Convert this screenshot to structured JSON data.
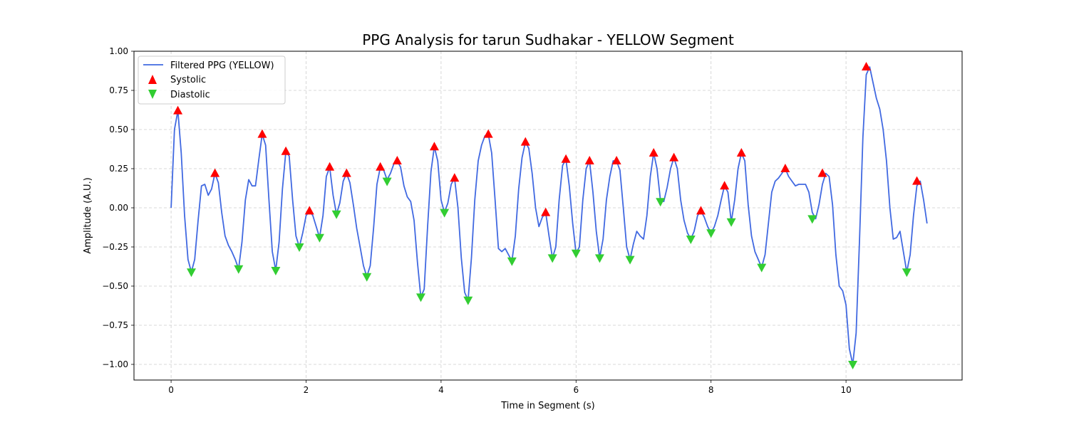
{
  "chart_data": {
    "type": "line",
    "title": "PPG Analysis for tarun Sudhakar - YELLOW Segment",
    "xlabel": "Time in Segment (s)",
    "ylabel": "Amplitude (A.U.)",
    "xlim": [
      -0.55,
      11.72
    ],
    "ylim": [
      -1.1,
      1.0
    ],
    "xticks": [
      0,
      2,
      4,
      6,
      8,
      10
    ],
    "yticks": [
      -1.0,
      -0.75,
      -0.5,
      -0.25,
      0.0,
      0.25,
      0.5,
      0.75,
      1.0
    ],
    "xtick_labels": [
      "0",
      "2",
      "4",
      "6",
      "8",
      "10"
    ],
    "ytick_labels": [
      "−1.00",
      "−0.75",
      "−0.50",
      "−0.25",
      "0.00",
      "0.25",
      "0.50",
      "0.75",
      "1.00"
    ],
    "grid": true,
    "legend_position": "upper-left",
    "colors": {
      "line": "#4169e1",
      "systolic": "#ff0000",
      "diastolic": "#32cd32"
    },
    "series": [
      {
        "name": "Filtered PPG (YELLOW)",
        "kind": "line",
        "points": [
          [
            0.0,
            0.0
          ],
          [
            0.05,
            0.5
          ],
          [
            0.1,
            0.62
          ],
          [
            0.15,
            0.35
          ],
          [
            0.2,
            -0.05
          ],
          [
            0.25,
            -0.33
          ],
          [
            0.3,
            -0.41
          ],
          [
            0.35,
            -0.33
          ],
          [
            0.4,
            -0.08
          ],
          [
            0.45,
            0.14
          ],
          [
            0.5,
            0.15
          ],
          [
            0.55,
            0.08
          ],
          [
            0.6,
            0.12
          ],
          [
            0.65,
            0.22
          ],
          [
            0.7,
            0.16
          ],
          [
            0.75,
            -0.03
          ],
          [
            0.8,
            -0.18
          ],
          [
            0.85,
            -0.24
          ],
          [
            0.9,
            -0.28
          ],
          [
            0.95,
            -0.33
          ],
          [
            1.0,
            -0.39
          ],
          [
            1.05,
            -0.22
          ],
          [
            1.1,
            0.05
          ],
          [
            1.15,
            0.18
          ],
          [
            1.2,
            0.14
          ],
          [
            1.25,
            0.14
          ],
          [
            1.3,
            0.31
          ],
          [
            1.35,
            0.47
          ],
          [
            1.4,
            0.4
          ],
          [
            1.45,
            0.05
          ],
          [
            1.5,
            -0.28
          ],
          [
            1.55,
            -0.4
          ],
          [
            1.6,
            -0.22
          ],
          [
            1.65,
            0.12
          ],
          [
            1.7,
            0.36
          ],
          [
            1.75,
            0.33
          ],
          [
            1.8,
            0.05
          ],
          [
            1.85,
            -0.18
          ],
          [
            1.9,
            -0.25
          ],
          [
            1.95,
            -0.16
          ],
          [
            2.0,
            -0.05
          ],
          [
            2.05,
            -0.02
          ],
          [
            2.1,
            -0.05
          ],
          [
            2.15,
            -0.12
          ],
          [
            2.2,
            -0.19
          ],
          [
            2.25,
            -0.05
          ],
          [
            2.3,
            0.2
          ],
          [
            2.35,
            0.26
          ],
          [
            2.4,
            0.08
          ],
          [
            2.45,
            -0.04
          ],
          [
            2.5,
            0.03
          ],
          [
            2.55,
            0.17
          ],
          [
            2.6,
            0.22
          ],
          [
            2.65,
            0.16
          ],
          [
            2.7,
            0.02
          ],
          [
            2.75,
            -0.13
          ],
          [
            2.8,
            -0.25
          ],
          [
            2.85,
            -0.37
          ],
          [
            2.9,
            -0.44
          ],
          [
            2.95,
            -0.37
          ],
          [
            3.0,
            -0.13
          ],
          [
            3.05,
            0.15
          ],
          [
            3.1,
            0.26
          ],
          [
            3.15,
            0.24
          ],
          [
            3.2,
            0.18
          ],
          [
            3.25,
            0.22
          ],
          [
            3.3,
            0.28
          ],
          [
            3.35,
            0.3
          ],
          [
            3.4,
            0.26
          ],
          [
            3.45,
            0.14
          ],
          [
            3.5,
            0.07
          ],
          [
            3.55,
            0.04
          ],
          [
            3.6,
            -0.08
          ],
          [
            3.65,
            -0.35
          ],
          [
            3.7,
            -0.57
          ],
          [
            3.75,
            -0.52
          ],
          [
            3.8,
            -0.12
          ],
          [
            3.85,
            0.23
          ],
          [
            3.9,
            0.39
          ],
          [
            3.95,
            0.3
          ],
          [
            4.0,
            0.05
          ],
          [
            4.05,
            -0.03
          ],
          [
            4.1,
            0.03
          ],
          [
            4.15,
            0.15
          ],
          [
            4.2,
            0.19
          ],
          [
            4.25,
            0.0
          ],
          [
            4.3,
            -0.32
          ],
          [
            4.35,
            -0.54
          ],
          [
            4.4,
            -0.59
          ],
          [
            4.45,
            -0.32
          ],
          [
            4.5,
            0.05
          ],
          [
            4.55,
            0.3
          ],
          [
            4.6,
            0.4
          ],
          [
            4.65,
            0.46
          ],
          [
            4.7,
            0.47
          ],
          [
            4.75,
            0.35
          ],
          [
            4.8,
            0.05
          ],
          [
            4.85,
            -0.26
          ],
          [
            4.9,
            -0.28
          ],
          [
            4.95,
            -0.26
          ],
          [
            5.0,
            -0.3
          ],
          [
            5.05,
            -0.34
          ],
          [
            5.1,
            -0.18
          ],
          [
            5.15,
            0.12
          ],
          [
            5.2,
            0.32
          ],
          [
            5.25,
            0.42
          ],
          [
            5.3,
            0.38
          ],
          [
            5.35,
            0.22
          ],
          [
            5.4,
            0.0
          ],
          [
            5.45,
            -0.12
          ],
          [
            5.5,
            -0.06
          ],
          [
            5.55,
            -0.03
          ],
          [
            5.6,
            -0.18
          ],
          [
            5.65,
            -0.32
          ],
          [
            5.7,
            -0.25
          ],
          [
            5.75,
            0.05
          ],
          [
            5.8,
            0.27
          ],
          [
            5.85,
            0.31
          ],
          [
            5.9,
            0.14
          ],
          [
            5.95,
            -0.1
          ],
          [
            6.0,
            -0.29
          ],
          [
            6.05,
            -0.25
          ],
          [
            6.1,
            0.05
          ],
          [
            6.15,
            0.25
          ],
          [
            6.2,
            0.3
          ],
          [
            6.25,
            0.1
          ],
          [
            6.3,
            -0.15
          ],
          [
            6.35,
            -0.32
          ],
          [
            6.4,
            -0.2
          ],
          [
            6.45,
            0.05
          ],
          [
            6.5,
            0.2
          ],
          [
            6.55,
            0.3
          ],
          [
            6.6,
            0.3
          ],
          [
            6.65,
            0.24
          ],
          [
            6.7,
            0.0
          ],
          [
            6.75,
            -0.25
          ],
          [
            6.8,
            -0.33
          ],
          [
            6.85,
            -0.23
          ],
          [
            6.9,
            -0.15
          ],
          [
            6.95,
            -0.18
          ],
          [
            7.0,
            -0.2
          ],
          [
            7.05,
            -0.05
          ],
          [
            7.1,
            0.2
          ],
          [
            7.15,
            0.35
          ],
          [
            7.2,
            0.25
          ],
          [
            7.25,
            0.05
          ],
          [
            7.3,
            0.04
          ],
          [
            7.35,
            0.13
          ],
          [
            7.4,
            0.25
          ],
          [
            7.45,
            0.32
          ],
          [
            7.5,
            0.25
          ],
          [
            7.55,
            0.05
          ],
          [
            7.6,
            -0.08
          ],
          [
            7.65,
            -0.16
          ],
          [
            7.7,
            -0.2
          ],
          [
            7.75,
            -0.15
          ],
          [
            7.8,
            -0.05
          ],
          [
            7.85,
            -0.02
          ],
          [
            7.9,
            -0.06
          ],
          [
            7.95,
            -0.12
          ],
          [
            8.0,
            -0.16
          ],
          [
            8.05,
            -0.12
          ],
          [
            8.1,
            -0.05
          ],
          [
            8.15,
            0.05
          ],
          [
            8.2,
            0.14
          ],
          [
            8.25,
            0.1
          ],
          [
            8.3,
            -0.09
          ],
          [
            8.35,
            0.05
          ],
          [
            8.4,
            0.25
          ],
          [
            8.45,
            0.35
          ],
          [
            8.5,
            0.3
          ],
          [
            8.55,
            0.02
          ],
          [
            8.6,
            -0.18
          ],
          [
            8.65,
            -0.28
          ],
          [
            8.7,
            -0.33
          ],
          [
            8.75,
            -0.38
          ],
          [
            8.8,
            -0.3
          ],
          [
            8.85,
            -0.1
          ],
          [
            8.9,
            0.1
          ],
          [
            8.95,
            0.17
          ],
          [
            9.0,
            0.19
          ],
          [
            9.05,
            0.22
          ],
          [
            9.1,
            0.25
          ],
          [
            9.15,
            0.2
          ],
          [
            9.2,
            0.17
          ],
          [
            9.25,
            0.14
          ],
          [
            9.3,
            0.15
          ],
          [
            9.35,
            0.15
          ],
          [
            9.4,
            0.15
          ],
          [
            9.45,
            0.1
          ],
          [
            9.5,
            -0.03
          ],
          [
            9.55,
            -0.07
          ],
          [
            9.6,
            0.02
          ],
          [
            9.65,
            0.15
          ],
          [
            9.7,
            0.22
          ],
          [
            9.75,
            0.2
          ],
          [
            9.8,
            0.02
          ],
          [
            9.85,
            -0.3
          ],
          [
            9.9,
            -0.5
          ],
          [
            9.95,
            -0.53
          ],
          [
            10.0,
            -0.62
          ],
          [
            10.05,
            -0.9
          ],
          [
            10.1,
            -1.0
          ],
          [
            10.15,
            -0.8
          ],
          [
            10.2,
            -0.2
          ],
          [
            10.25,
            0.45
          ],
          [
            10.3,
            0.85
          ],
          [
            10.35,
            0.9
          ],
          [
            10.4,
            0.8
          ],
          [
            10.45,
            0.7
          ],
          [
            10.5,
            0.63
          ],
          [
            10.55,
            0.5
          ],
          [
            10.6,
            0.3
          ],
          [
            10.65,
            0.0
          ],
          [
            10.7,
            -0.2
          ],
          [
            10.75,
            -0.19
          ],
          [
            10.8,
            -0.15
          ],
          [
            10.85,
            -0.28
          ],
          [
            10.9,
            -0.41
          ],
          [
            10.95,
            -0.3
          ],
          [
            11.0,
            -0.05
          ],
          [
            11.05,
            0.14
          ],
          [
            11.1,
            0.17
          ],
          [
            11.15,
            0.05
          ],
          [
            11.2,
            -0.1
          ]
        ]
      },
      {
        "name": "Systolic",
        "kind": "marker-up",
        "points": [
          [
            0.1,
            0.62
          ],
          [
            0.65,
            0.22
          ],
          [
            1.35,
            0.47
          ],
          [
            1.7,
            0.36
          ],
          [
            2.05,
            -0.02
          ],
          [
            2.35,
            0.26
          ],
          [
            2.6,
            0.22
          ],
          [
            3.1,
            0.26
          ],
          [
            3.35,
            0.3
          ],
          [
            3.9,
            0.39
          ],
          [
            4.2,
            0.19
          ],
          [
            4.7,
            0.47
          ],
          [
            5.25,
            0.42
          ],
          [
            5.55,
            -0.03
          ],
          [
            5.85,
            0.31
          ],
          [
            6.2,
            0.3
          ],
          [
            6.6,
            0.3
          ],
          [
            7.15,
            0.35
          ],
          [
            7.45,
            0.32
          ],
          [
            7.85,
            -0.02
          ],
          [
            8.2,
            0.14
          ],
          [
            8.45,
            0.35
          ],
          [
            9.1,
            0.25
          ],
          [
            9.65,
            0.22
          ],
          [
            10.3,
            0.9
          ],
          [
            11.05,
            0.17
          ]
        ]
      },
      {
        "name": "Diastolic",
        "kind": "marker-down",
        "points": [
          [
            0.3,
            -0.41
          ],
          [
            1.0,
            -0.39
          ],
          [
            1.55,
            -0.4
          ],
          [
            1.9,
            -0.25
          ],
          [
            2.2,
            -0.19
          ],
          [
            2.45,
            -0.04
          ],
          [
            2.9,
            -0.44
          ],
          [
            3.2,
            0.17
          ],
          [
            3.7,
            -0.57
          ],
          [
            4.05,
            -0.03
          ],
          [
            4.4,
            -0.59
          ],
          [
            5.05,
            -0.34
          ],
          [
            5.65,
            -0.32
          ],
          [
            6.0,
            -0.29
          ],
          [
            6.35,
            -0.32
          ],
          [
            6.8,
            -0.33
          ],
          [
            7.25,
            0.04
          ],
          [
            7.7,
            -0.2
          ],
          [
            8.0,
            -0.16
          ],
          [
            8.3,
            -0.09
          ],
          [
            8.75,
            -0.38
          ],
          [
            9.5,
            -0.07
          ],
          [
            10.1,
            -1.0
          ],
          [
            10.9,
            -0.41
          ]
        ]
      }
    ]
  }
}
